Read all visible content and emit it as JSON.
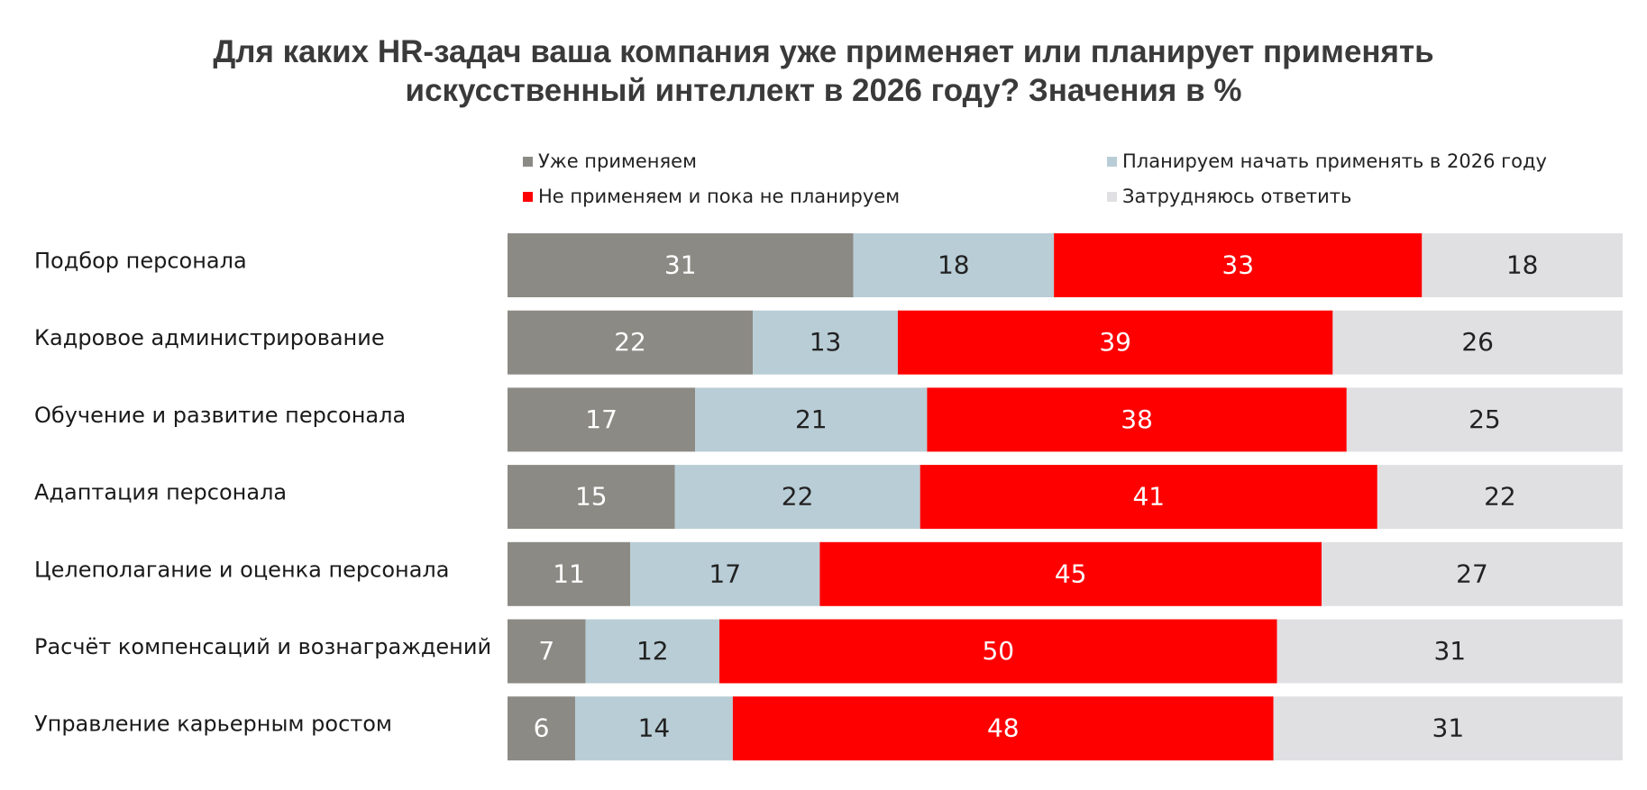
{
  "title_lines": [
    "Для каких HR-задач ваша компания уже применяет или планирует применять",
    "искусственный интеллект в 2026 году? Значения в %"
  ],
  "legend": [
    {
      "label": "Уже применяем",
      "color": "#8c8a84"
    },
    {
      "label": "Планируем начать применять в 2026 году",
      "color": "#b9cdd6"
    },
    {
      "label": "Не применяем и пока не планируем",
      "color": "#ff0000"
    },
    {
      "label": "Затрудняюсь ответить",
      "color": "#e0e0e3"
    }
  ],
  "chart_data": {
    "type": "bar",
    "orientation": "horizontal",
    "stacked": true,
    "title": "Для каких HR-задач ваша компания уже применяет или планирует применять искусственный интеллект в 2026 году? Значения в %",
    "categories": [
      "Подбор персонала",
      "Кадровое администрирование",
      "Обучение и развитие персонала",
      "Адаптация персонала",
      "Целеполагание и оценка персонала",
      "Расчёт компенсаций и вознаграждений",
      "Управление карьерным ростом"
    ],
    "series": [
      {
        "name": "Уже применяем",
        "color": "#8c8a84",
        "label_color": "#ffffff",
        "values": [
          31,
          22,
          17,
          15,
          11,
          7,
          6
        ]
      },
      {
        "name": "Планируем начать применять в 2026 году",
        "color": "#b9cdd6",
        "label_color": "#222222",
        "values": [
          18,
          13,
          21,
          22,
          17,
          12,
          14
        ]
      },
      {
        "name": "Не применяем и пока не планируем",
        "color": "#ff0000",
        "label_color": "#ffffff",
        "values": [
          33,
          39,
          38,
          41,
          45,
          50,
          48
        ]
      },
      {
        "name": "Затрудняюсь ответить",
        "color": "#e0e0e3",
        "label_color": "#222222",
        "values": [
          18,
          26,
          25,
          22,
          27,
          31,
          31
        ]
      }
    ],
    "xlim": [
      0,
      100
    ],
    "grid": false,
    "legend_position": "top"
  }
}
